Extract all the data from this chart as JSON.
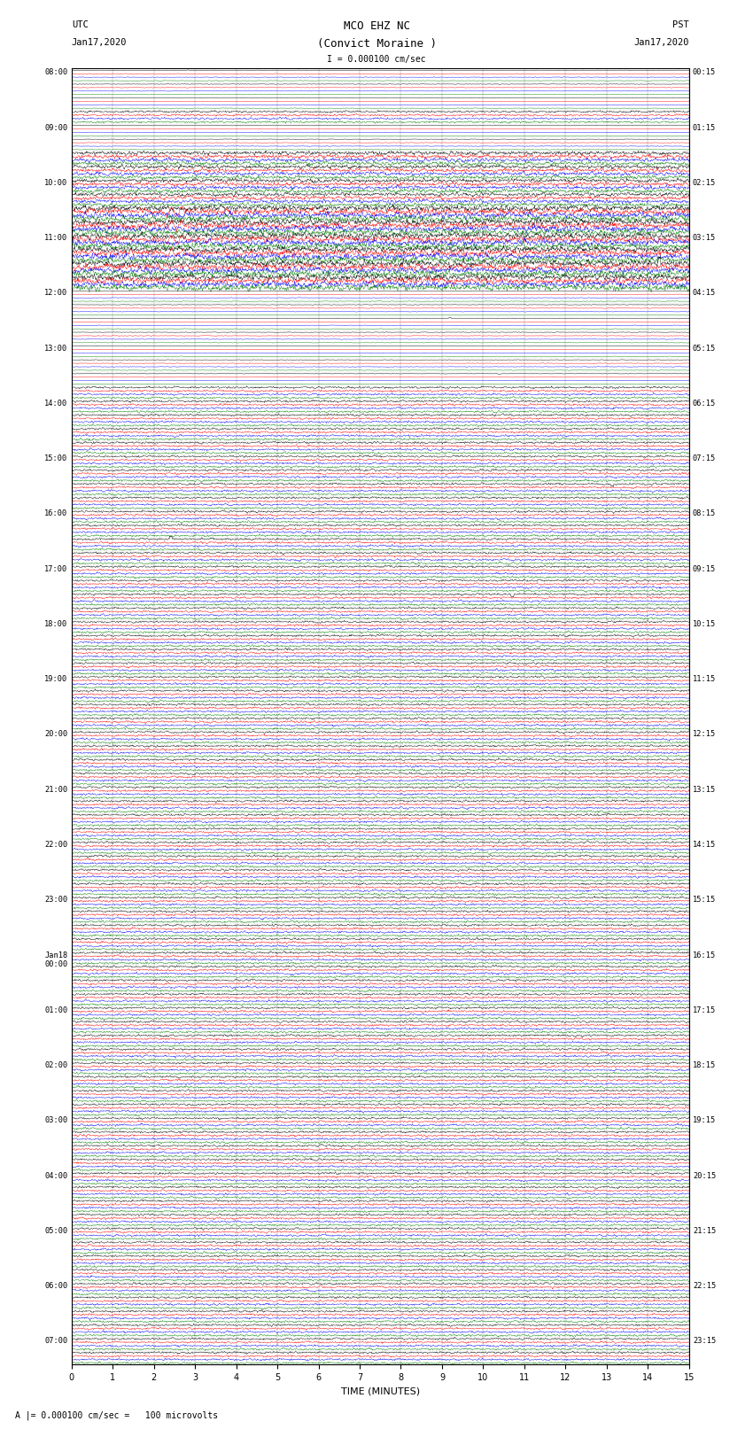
{
  "title_line1": "MCO EHZ NC",
  "title_line2": "(Convict Moraine )",
  "title_line3": "I = 0.000100 cm/sec",
  "xlabel": "TIME (MINUTES)",
  "footer": "A |= 0.000100 cm/sec =   100 microvolts",
  "xlim": [
    0,
    15
  ],
  "xticks": [
    0,
    1,
    2,
    3,
    4,
    5,
    6,
    7,
    8,
    9,
    10,
    11,
    12,
    13,
    14,
    15
  ],
  "trace_colors": [
    "black",
    "red",
    "blue",
    "green"
  ],
  "fig_width": 8.5,
  "fig_height": 16.13,
  "background_color": "white",
  "left_labels": [
    "08:00",
    "",
    "",
    "",
    "09:00",
    "",
    "",
    "",
    "10:00",
    "",
    "",
    "",
    "11:00",
    "",
    "",
    "",
    "12:00",
    "",
    "",
    "",
    "13:00",
    "",
    "",
    "",
    "14:00",
    "",
    "",
    "",
    "15:00",
    "",
    "",
    "",
    "16:00",
    "",
    "",
    "",
    "17:00",
    "",
    "",
    "",
    "18:00",
    "",
    "",
    "",
    "19:00",
    "",
    "",
    "",
    "20:00",
    "",
    "",
    "",
    "21:00",
    "",
    "",
    "",
    "22:00",
    "",
    "",
    "",
    "23:00",
    "",
    "",
    "",
    "Jan18\n00:00",
    "",
    "",
    "",
    "01:00",
    "",
    "",
    "",
    "02:00",
    "",
    "",
    "",
    "03:00",
    "",
    "",
    "",
    "04:00",
    "",
    "",
    "",
    "05:00",
    "",
    "",
    "",
    "06:00",
    "",
    "",
    "",
    "07:00",
    ""
  ],
  "right_labels": [
    "00:15",
    "",
    "",
    "",
    "01:15",
    "",
    "",
    "",
    "02:15",
    "",
    "",
    "",
    "03:15",
    "",
    "",
    "",
    "04:15",
    "",
    "",
    "",
    "05:15",
    "",
    "",
    "",
    "06:15",
    "",
    "",
    "",
    "07:15",
    "",
    "",
    "",
    "08:15",
    "",
    "",
    "",
    "09:15",
    "",
    "",
    "",
    "10:15",
    "",
    "",
    "",
    "11:15",
    "",
    "",
    "",
    "12:15",
    "",
    "",
    "",
    "13:15",
    "",
    "",
    "",
    "14:15",
    "",
    "",
    "",
    "15:15",
    "",
    "",
    "",
    "16:15",
    "",
    "",
    "",
    "17:15",
    "",
    "",
    "",
    "18:15",
    "",
    "",
    "",
    "19:15",
    "",
    "",
    "",
    "20:15",
    "",
    "",
    "",
    "21:15",
    "",
    "",
    "",
    "22:15",
    "",
    "",
    "",
    "23:15",
    ""
  ],
  "row_amplitudes": {
    "default": 0.3,
    "quiet": 0.08,
    "noisy": 0.55,
    "event": 0.9
  },
  "quiet_rows": [
    0,
    1,
    2,
    3,
    4,
    5,
    6,
    7,
    8,
    9,
    10,
    11,
    16,
    17,
    18,
    19,
    20,
    21,
    22,
    23,
    64,
    65,
    66,
    67,
    68,
    69,
    70,
    71,
    72,
    73,
    74,
    75,
    76,
    77,
    78,
    79,
    80,
    81,
    82,
    83,
    84,
    85,
    86,
    87,
    88,
    89,
    90,
    91
  ],
  "event_rows": [
    40,
    41,
    42,
    43,
    44,
    45,
    46,
    47,
    48,
    49,
    50,
    51,
    52,
    53,
    54,
    55,
    56,
    57,
    58,
    59,
    60,
    61,
    62,
    63
  ],
  "noisy_rows": [
    24,
    25,
    26,
    27,
    28,
    29,
    30,
    31,
    32,
    33,
    34,
    35,
    36,
    37,
    38,
    39
  ],
  "spike_rows": [
    44,
    48,
    52,
    56,
    60,
    72
  ]
}
